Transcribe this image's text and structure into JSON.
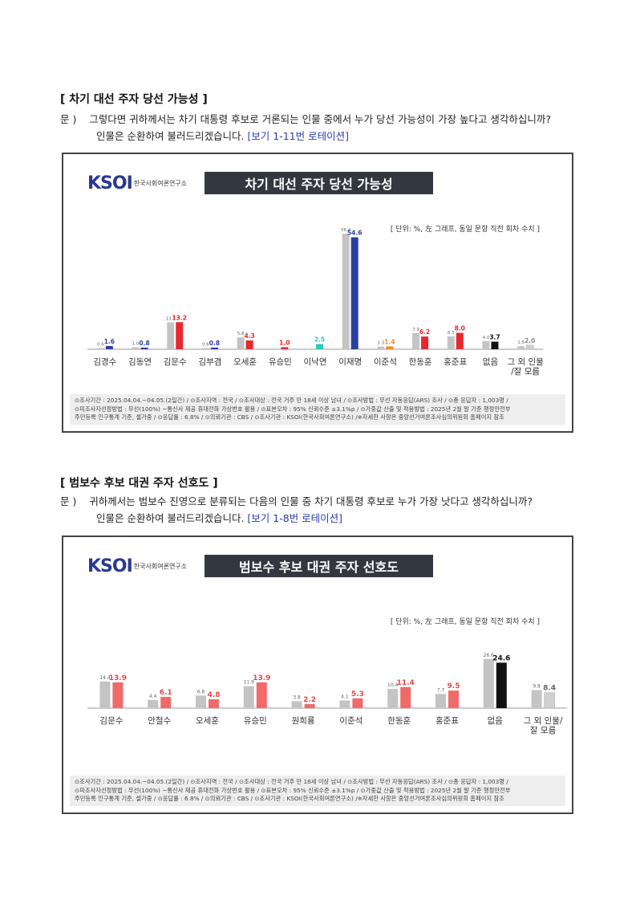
{
  "sections": [
    {
      "title": "[ 차기 대선 주자 당선 가능성 ]",
      "q_prefix": "문 )",
      "q_line1": "그렇다면 귀하께서는 차기 대통령 후보로 거론되는 인물 중에서 누가 당선 가능성이 가장 높다고 생각하십니까?",
      "q_line2": "인물은 순환하여 불러드리겠습니다.",
      "q_note": "[보기 1-11번 로테이션]",
      "logo_mark": "KSOI",
      "logo_text": "한국사회여론연구소",
      "chart_title": "차기 대선 주자 당선 가능성",
      "unit_note": "[ 단위: %, 左 그래프, 동일 문항 직전 회차 수치 ]",
      "footer": [
        "⊙조사기간 : 2025.04.04.~04.05.(2일간) / ⊙조사지역 : 전국 / ⊙조사대상 : 전국 거주 만 18세 이상 남녀 / ⊙조사방법 : 무선 자동응답(ARS) 조사 / ⊙총 응답자 : 1,003명 /",
        "⊙피조사자선정방법 : 무선(100%) ~통신사 제공 휴대전화 가상번호 활용 / ⊙표본오차 : 95% 신뢰수준 ±3.1%p / ⊙가중값 산출 및 적용방법 : 2025년 2월 말 기준 행정안전부",
        "주민등록 인구통계 기준, 셀가중 / ⊙응답률 : 6.8% / ⊙의뢰기관 : CBS / ⊙조사기관 : KSOI(한국사회여론연구소) /※자세한 사항은 중앙선거여론조사심의위원회 홈페이지 참조"
      ]
    },
    {
      "title": "[ 범보수 후보 대권 주자 선호도 ]",
      "q_prefix": "문 )",
      "q_line1": "귀하께서는 범보수 진영으로 분류되는 다음의 인물 중 차기 대통령 후보로 누가 가장 낫다고 생각하십니까?",
      "q_line2": "인물은 순환하여 불러드리겠습니다.",
      "q_note": "[보기 1-8번 로테이션]",
      "logo_mark": "KSOI",
      "logo_text": "한국사회여론연구소",
      "chart_title": "범보수 후보 대권 주자 선호도",
      "unit_note": "[ 단위: %, 左 그래프, 동일 문항 직전 회차 수치 ]",
      "footer": [
        "⊙조사기간 : 2025.04.04.~04.05.(2일간) / ⊙조사지역 : 전국 / ⊙조사대상 : 전국 거주 만 18세 이상 남녀 / ⊙조사방법 : 무선 자동응답(ARS) 조사 / ⊙총 응답자 : 1,003명 /",
        "⊙피조사자선정방법 : 무선(100%) ~통신사 제공 휴대전화 가상번호 활용 / ⊙표본오차 : 95% 신뢰수준 ±3.1%p / ⊙가중값 산출 및 적용방법 : 2025년 2월 말 기준 행정안전부",
        "주민등록 인구통계 기준, 셀가중 / ⊙응답률 : 6.8% / ⊙의뢰기관 : CBS / ⊙조사기관 : KSOI(한국사회여론연구소) /※자세한 사항은 중앙선거여론조사심의위원회 홈페이지 참조"
      ]
    }
  ],
  "chart_data": [
    {
      "type": "bar",
      "title": "차기 대선 주자 당선 가능성",
      "categories": [
        "김경수",
        "김동연",
        "김문수",
        "김부겸",
        "오세훈",
        "유승민",
        "이낙연",
        "이재명",
        "이준석",
        "한동훈",
        "홍준표",
        "없음",
        "그 외 인물\n/잘 모름"
      ],
      "previous": [
        0.6,
        1.0,
        13.1,
        0.6,
        5.8,
        null,
        null,
        56.4,
        1.3,
        7.9,
        6.3,
        4.0,
        1.5
      ],
      "current": [
        1.6,
        0.8,
        13.2,
        0.8,
        4.3,
        1.0,
        2.5,
        54.6,
        1.4,
        6.2,
        8.0,
        3.7,
        2.0
      ],
      "current_colors": [
        "#2c3e9e",
        "#2c3e9e",
        "#e8282e",
        "#2c3e9e",
        "#e8282e",
        "#e8282e",
        "#2cc6c6",
        "#2c3e9e",
        "#f08a20",
        "#e8282e",
        "#e8282e",
        "#111111",
        "#aaaaaa"
      ],
      "current_label_colors": [
        "#2c3e9e",
        "#2c3e9e",
        "#e8282e",
        "#2c3e9e",
        "#e8282e",
        "#e8282e",
        "#2cc6c6",
        "#2c3e9e",
        "#f08a20",
        "#e8282e",
        "#e8282e",
        "#111111",
        "#888888"
      ],
      "previous_color": "#c4c4c4",
      "ylim": [
        0,
        60
      ]
    },
    {
      "type": "bar",
      "title": "범보수 후보 대권 주자 선호도",
      "categories": [
        "김문수",
        "안철수",
        "오세훈",
        "유승민",
        "원희룡",
        "이준석",
        "한동훈",
        "홍준표",
        "없음",
        "그 외 인물/\n잘 모름"
      ],
      "previous": [
        14.4,
        4.4,
        6.8,
        11.9,
        3.8,
        4.1,
        10.4,
        7.7,
        26.6,
        9.8
      ],
      "current": [
        13.9,
        6.1,
        4.8,
        13.9,
        2.2,
        5.3,
        11.4,
        9.5,
        24.6,
        8.4
      ],
      "current_colors": [
        "#f06a6a",
        "#f06a6a",
        "#f06a6a",
        "#f06a6a",
        "#f06a6a",
        "#f06a6a",
        "#f06a6a",
        "#f06a6a",
        "#111111",
        "#bbbbbb"
      ],
      "current_label_colors": [
        "#e8474a",
        "#e8474a",
        "#e8474a",
        "#e8474a",
        "#e8474a",
        "#e8474a",
        "#e8474a",
        "#e8474a",
        "#111111",
        "#666666"
      ],
      "previous_color": "#c4c4c4",
      "ylim": [
        0,
        30
      ]
    }
  ]
}
